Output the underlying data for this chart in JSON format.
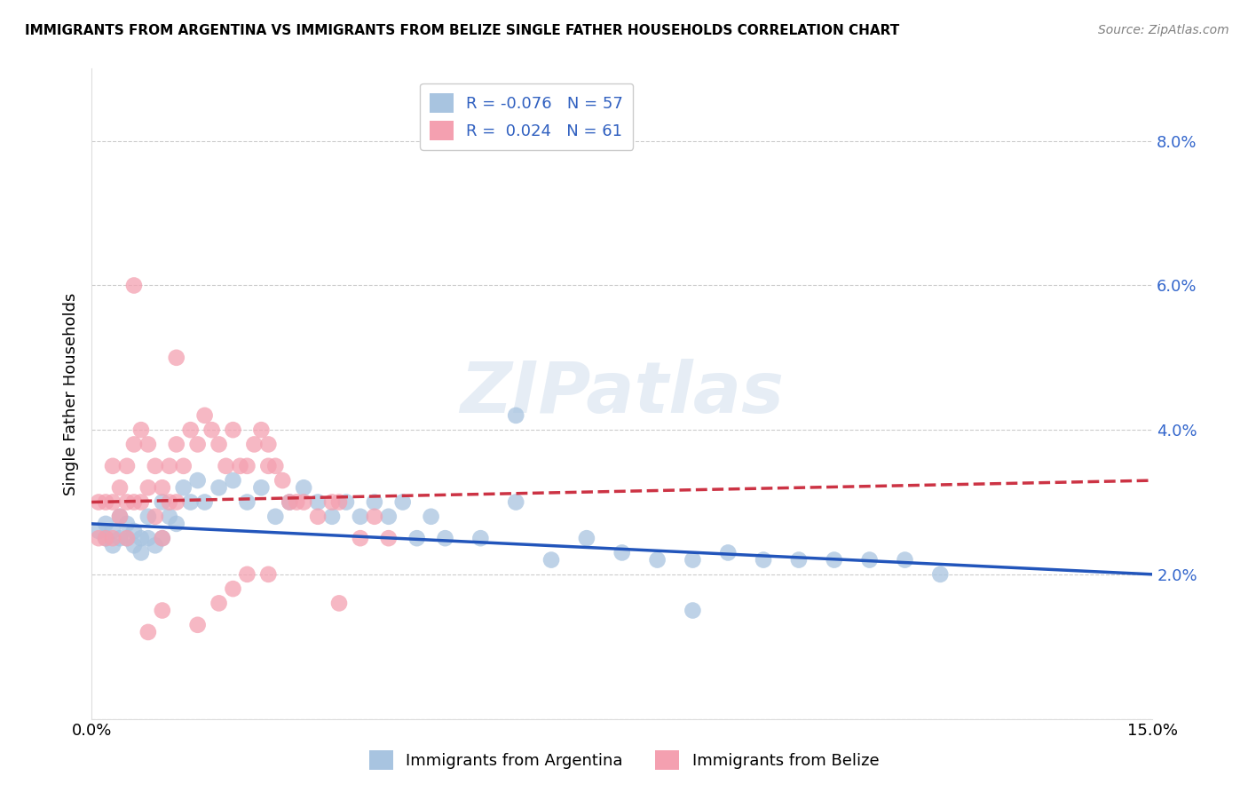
{
  "title": "IMMIGRANTS FROM ARGENTINA VS IMMIGRANTS FROM BELIZE SINGLE FATHER HOUSEHOLDS CORRELATION CHART",
  "source": "Source: ZipAtlas.com",
  "ylabel": "Single Father Households",
  "legend_labels": [
    "Immigrants from Argentina",
    "Immigrants from Belize"
  ],
  "r_argentina": -0.076,
  "n_argentina": 57,
  "r_belize": 0.024,
  "n_belize": 61,
  "color_argentina": "#a8c4e0",
  "color_belize": "#f4a0b0",
  "line_color_argentina": "#2255bb",
  "line_color_belize": "#cc3344",
  "xlim": [
    0.0,
    0.15
  ],
  "ylim": [
    0.0,
    0.09
  ],
  "yticks": [
    0.0,
    0.02,
    0.04,
    0.06,
    0.08
  ],
  "ytick_labels": [
    "",
    "2.0%",
    "4.0%",
    "6.0%",
    "8.0%"
  ],
  "xticks": [
    0.0,
    0.15
  ],
  "xtick_labels": [
    "0.0%",
    "15.0%"
  ],
  "watermark": "ZIPatlas",
  "argentina_x": [
    0.001,
    0.002,
    0.002,
    0.003,
    0.003,
    0.004,
    0.004,
    0.005,
    0.005,
    0.006,
    0.006,
    0.007,
    0.007,
    0.008,
    0.008,
    0.009,
    0.01,
    0.01,
    0.011,
    0.012,
    0.013,
    0.014,
    0.015,
    0.016,
    0.018,
    0.02,
    0.022,
    0.024,
    0.026,
    0.028,
    0.03,
    0.032,
    0.034,
    0.036,
    0.038,
    0.04,
    0.042,
    0.044,
    0.046,
    0.048,
    0.05,
    0.055,
    0.06,
    0.065,
    0.07,
    0.075,
    0.08,
    0.085,
    0.09,
    0.095,
    0.1,
    0.105,
    0.11,
    0.115,
    0.12,
    0.085,
    0.06
  ],
  "argentina_y": [
    0.026,
    0.025,
    0.027,
    0.024,
    0.026,
    0.025,
    0.028,
    0.025,
    0.027,
    0.024,
    0.026,
    0.025,
    0.023,
    0.025,
    0.028,
    0.024,
    0.03,
    0.025,
    0.028,
    0.027,
    0.032,
    0.03,
    0.033,
    0.03,
    0.032,
    0.033,
    0.03,
    0.032,
    0.028,
    0.03,
    0.032,
    0.03,
    0.028,
    0.03,
    0.028,
    0.03,
    0.028,
    0.03,
    0.025,
    0.028,
    0.025,
    0.025,
    0.03,
    0.022,
    0.025,
    0.023,
    0.022,
    0.022,
    0.023,
    0.022,
    0.022,
    0.022,
    0.022,
    0.022,
    0.02,
    0.015,
    0.042
  ],
  "belize_x": [
    0.001,
    0.001,
    0.002,
    0.002,
    0.003,
    0.003,
    0.003,
    0.004,
    0.004,
    0.005,
    0.005,
    0.005,
    0.006,
    0.006,
    0.007,
    0.007,
    0.008,
    0.008,
    0.009,
    0.009,
    0.01,
    0.01,
    0.011,
    0.011,
    0.012,
    0.012,
    0.013,
    0.014,
    0.015,
    0.016,
    0.017,
    0.018,
    0.019,
    0.02,
    0.021,
    0.022,
    0.023,
    0.024,
    0.025,
    0.025,
    0.026,
    0.027,
    0.028,
    0.029,
    0.03,
    0.032,
    0.034,
    0.035,
    0.038,
    0.04,
    0.042,
    0.025,
    0.015,
    0.02,
    0.018,
    0.022,
    0.01,
    0.008,
    0.006,
    0.012,
    0.035
  ],
  "belize_y": [
    0.025,
    0.03,
    0.025,
    0.03,
    0.025,
    0.03,
    0.035,
    0.028,
    0.032,
    0.025,
    0.03,
    0.035,
    0.03,
    0.038,
    0.03,
    0.04,
    0.032,
    0.038,
    0.028,
    0.035,
    0.025,
    0.032,
    0.03,
    0.035,
    0.03,
    0.038,
    0.035,
    0.04,
    0.038,
    0.042,
    0.04,
    0.038,
    0.035,
    0.04,
    0.035,
    0.035,
    0.038,
    0.04,
    0.035,
    0.038,
    0.035,
    0.033,
    0.03,
    0.03,
    0.03,
    0.028,
    0.03,
    0.03,
    0.025,
    0.028,
    0.025,
    0.02,
    0.013,
    0.018,
    0.016,
    0.02,
    0.015,
    0.012,
    0.06,
    0.05,
    0.016
  ],
  "arg_trend_start_y": 0.027,
  "arg_trend_end_y": 0.02,
  "bel_trend_start_y": 0.03,
  "bel_trend_end_y": 0.033
}
